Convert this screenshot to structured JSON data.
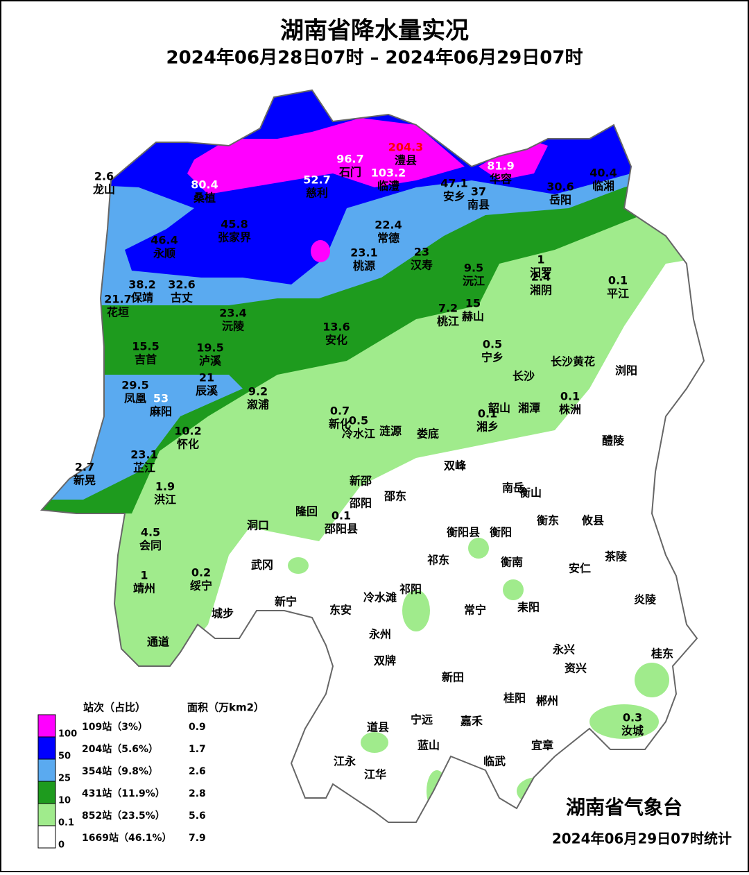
{
  "header": {
    "title": "湖南省降水量实况",
    "subtitle": "2024年06月28日07时 – 2024年06月29日07时"
  },
  "stations": [
    {
      "name": "龙山",
      "value": 2.6
    },
    {
      "name": "桑植",
      "value": 80.4,
      "value_color": "#ffffff"
    },
    {
      "name": "慈利",
      "value": 52.7,
      "value_color": "#ffffff"
    },
    {
      "name": "石门",
      "value": 96.7,
      "value_color": "#ffffff"
    },
    {
      "name": "澧县",
      "value": 204.3,
      "value_color": "#ff0000"
    },
    {
      "name": "临澧",
      "value": 103.2,
      "value_color": "#ffffff"
    },
    {
      "name": "安乡",
      "value": 47.1
    },
    {
      "name": "南县",
      "value": 37
    },
    {
      "name": "华容",
      "value": 81.9,
      "value_color": "#ffffff"
    },
    {
      "name": "岳阳",
      "value": 30.6
    },
    {
      "name": "临湘",
      "value": 40.4
    },
    {
      "name": "永顺",
      "value": 46.4
    },
    {
      "name": "张家界",
      "value": 45.8
    },
    {
      "name": "常德",
      "value": 22.4
    },
    {
      "name": "桃源",
      "value": 23.1
    },
    {
      "name": "汉寿",
      "value": 23
    },
    {
      "name": "汨罗",
      "value": 1
    },
    {
      "name": "沅江",
      "value": 9.5
    },
    {
      "name": "湘阴",
      "value": 2.4
    },
    {
      "name": "平江",
      "value": 0.1
    },
    {
      "name": "保靖",
      "value": 38.2
    },
    {
      "name": "古丈",
      "value": 32.6
    },
    {
      "name": "花垣",
      "value": 21.7
    },
    {
      "name": "沅陵",
      "value": 23.4
    },
    {
      "name": "桃江",
      "value": 7.2
    },
    {
      "name": "赫山",
      "value": 15
    },
    {
      "name": "安化",
      "value": 13.6
    },
    {
      "name": "宁乡",
      "value": 0.5
    },
    {
      "name": "吉首",
      "value": 15.5
    },
    {
      "name": "泸溪",
      "value": 19.5
    },
    {
      "name": "辰溪",
      "value": 21
    },
    {
      "name": "溆浦",
      "value": 9.2
    },
    {
      "name": "凤凰",
      "value": 29.5
    },
    {
      "name": "麻阳",
      "value": 53,
      "value_color": "#ffffff"
    },
    {
      "name": "株洲",
      "value": 0.1
    },
    {
      "name": "新化",
      "value": 0.7
    },
    {
      "name": "冷水江",
      "value": 0.5
    },
    {
      "name": "湘乡",
      "value": 0.1
    },
    {
      "name": "怀化",
      "value": 10.2
    },
    {
      "name": "芷江",
      "value": 23.1
    },
    {
      "name": "新晃",
      "value": 2.7
    },
    {
      "name": "洪江",
      "value": 1.9
    },
    {
      "name": "邵阳县",
      "value": 0.1
    },
    {
      "name": "会同",
      "value": 4.5
    },
    {
      "name": "靖州",
      "value": 1
    },
    {
      "name": "绥宁",
      "value": 0.2
    },
    {
      "name": "汝城",
      "value": 0.3
    }
  ],
  "towns": [
    "长沙黄花",
    "浏阳",
    "长沙",
    "韶山",
    "湘潭",
    "涟源",
    "娄底",
    "醴陵",
    "双峰",
    "新邵",
    "邵阳",
    "邵东",
    "南岳",
    "衡山",
    "隆回",
    "洞口",
    "衡阳县",
    "衡阳",
    "衡东",
    "攸县",
    "茶陵",
    "祁东",
    "衡南",
    "安仁",
    "武冈",
    "炎陵",
    "冷水滩",
    "祁阳",
    "常宁",
    "耒阳",
    "新宁",
    "城步",
    "东安",
    "永州",
    "通道",
    "双牌",
    "永兴",
    "资兴",
    "桂东",
    "新田",
    "桂阳",
    "郴州",
    "道县",
    "宁远",
    "嘉禾",
    "蓝山",
    "宜章",
    "临武",
    "江永",
    "江华"
  ],
  "legend": {
    "col_stations": "站次（占比）",
    "col_area": "面积（万km2）",
    "rows": [
      {
        "color": "#ff00ff",
        "stations": "109站（3%）",
        "area": 0.9
      },
      {
        "color": "#0000ff",
        "stations": "204站（5.6%）",
        "area": 1.7
      },
      {
        "color": "#5aaaf0",
        "stations": "354站（9.8%）",
        "area": 2.6
      },
      {
        "color": "#1e9b1e",
        "stations": "431站（11.9%）",
        "area": 2.8
      },
      {
        "color": "#a0eb8c",
        "stations": "852站（23.5%）",
        "area": 5.6
      },
      {
        "color": "#ffffff",
        "stations": "1669站（46.1%）",
        "area": 7.9
      }
    ],
    "thresholds": [
      100,
      50,
      25,
      10,
      0.1,
      0
    ]
  },
  "footer": {
    "agency": "湖南省气象台",
    "stamp": "2024年06月29日07时统计"
  }
}
